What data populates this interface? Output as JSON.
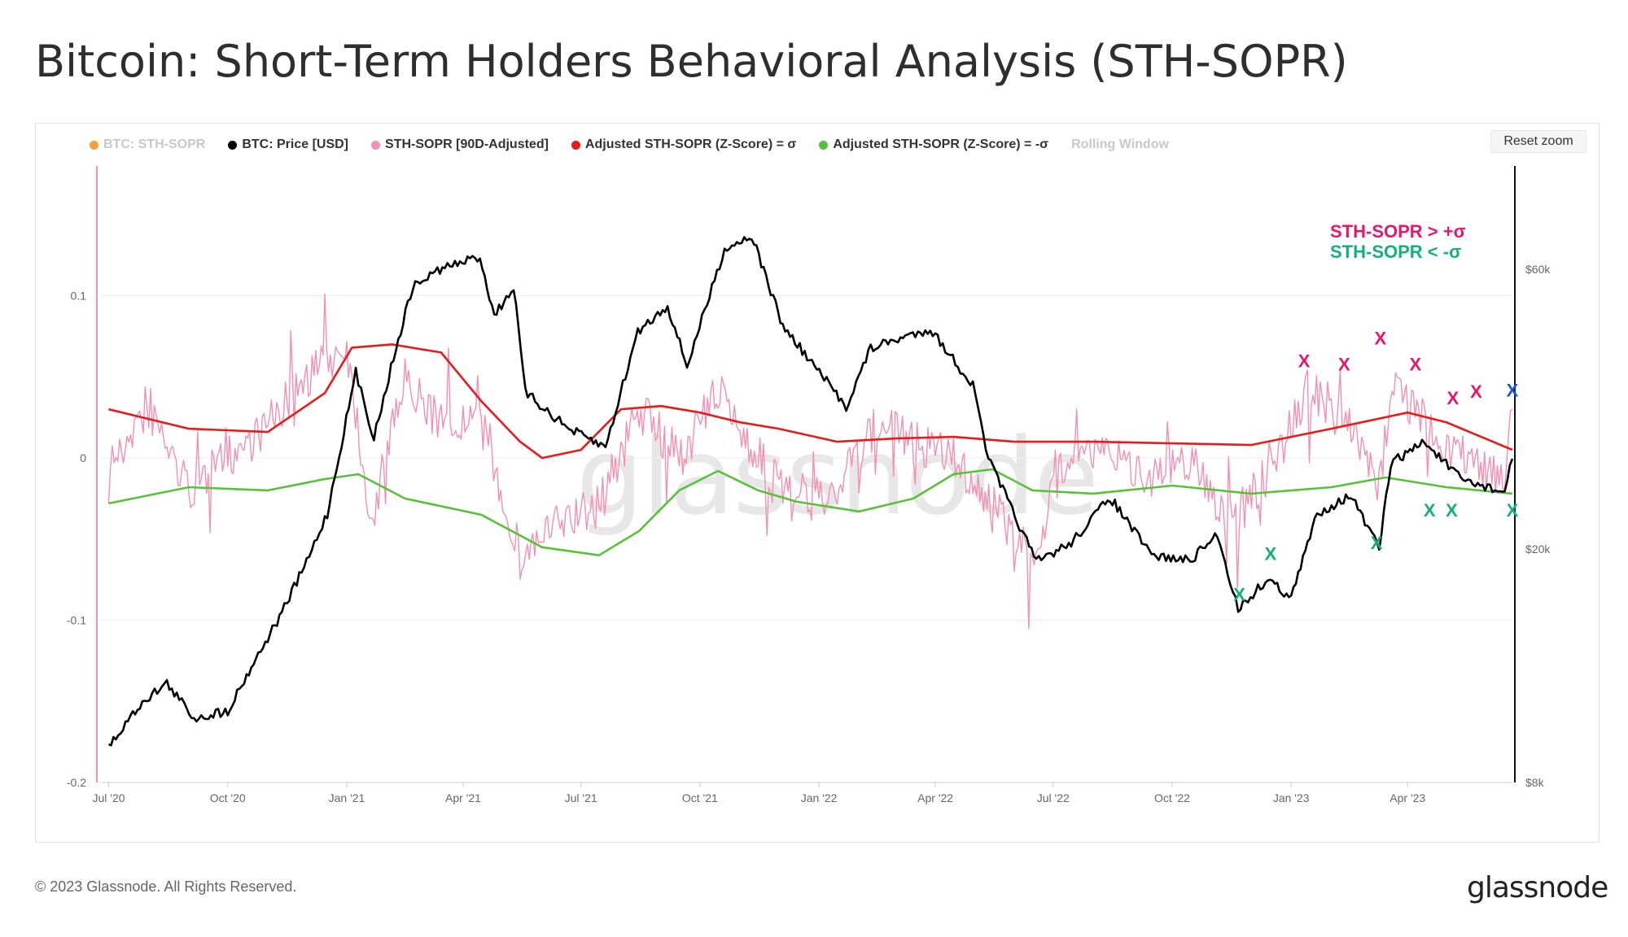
{
  "header": {
    "title": "Bitcoin: Short-Term Holders Behavioral Analysis (STH-SOPR)"
  },
  "legend": {
    "items": [
      {
        "label": "BTC: STH-SOPR",
        "color": "#f7a035",
        "enabled": false
      },
      {
        "label": "BTC: Price [USD]",
        "color": "#000000",
        "enabled": true
      },
      {
        "label": "STH-SOPR [90D-Adjusted]",
        "color": "#f48fb1",
        "enabled": true
      },
      {
        "label": "Adjusted STH-SOPR (Z-Score) = σ",
        "color": "#e81a1a",
        "enabled": true
      },
      {
        "label": "Adjusted STH-SOPR (Z-Score) = -σ",
        "color": "#55c338",
        "enabled": true
      },
      {
        "label": "Rolling Window",
        "color": "",
        "enabled": false
      }
    ]
  },
  "toolbar": {
    "reset_zoom_label": "Reset zoom"
  },
  "watermark": "glassnode",
  "annotations": {
    "upper": "STH-SOPR  > +σ",
    "lower": "STH-SOPR  < -σ"
  },
  "footer": {
    "copyright": "© 2023 Glassnode. All Rights Reserved.",
    "brand": "glassnode"
  },
  "chart_data": {
    "type": "line",
    "x_tick_labels": [
      "Jul '20",
      "Oct '20",
      "Jan '21",
      "Apr '21",
      "Jul '21",
      "Oct '21",
      "Jan '22",
      "Apr '22",
      "Jul '22",
      "Oct '22",
      "Jan '23",
      "Apr '23"
    ],
    "x_range": [
      "2020-06-25",
      "2023-06-21"
    ],
    "y_left": {
      "ticks": [
        0.1,
        0,
        -0.1,
        -0.2
      ],
      "tick_labels": [
        "0.1",
        "0",
        "-0.1",
        "-0.2"
      ],
      "range": [
        -0.2,
        0.18
      ]
    },
    "y_right": {
      "scale": "log",
      "ticks": [
        60000,
        20000,
        8000
      ],
      "tick_labels": [
        "$60k",
        "$20k",
        "$8k"
      ],
      "range": [
        8000,
        90000
      ]
    },
    "series": [
      {
        "name": "BTC: Price [USD]",
        "axis": "right",
        "color": "#000000",
        "points": [
          [
            "2020-07-01",
            9200
          ],
          [
            "2020-07-27",
            11000
          ],
          [
            "2020-08-15",
            11800
          ],
          [
            "2020-09-05",
            10300
          ],
          [
            "2020-10-01",
            10600
          ],
          [
            "2020-10-21",
            12800
          ],
          [
            "2020-11-10",
            15300
          ],
          [
            "2020-12-01",
            19000
          ],
          [
            "2020-12-17",
            23000
          ],
          [
            "2021-01-08",
            40000
          ],
          [
            "2021-01-22",
            31000
          ],
          [
            "2021-02-08",
            44000
          ],
          [
            "2021-02-21",
            56000
          ],
          [
            "2021-03-14",
            60000
          ],
          [
            "2021-04-14",
            63000
          ],
          [
            "2021-04-25",
            50000
          ],
          [
            "2021-05-10",
            56000
          ],
          [
            "2021-05-19",
            37000
          ],
          [
            "2021-06-22",
            32000
          ],
          [
            "2021-07-20",
            29800
          ],
          [
            "2021-08-14",
            47000
          ],
          [
            "2021-09-06",
            52000
          ],
          [
            "2021-09-21",
            41000
          ],
          [
            "2021-10-20",
            65000
          ],
          [
            "2021-11-10",
            68500
          ],
          [
            "2021-12-04",
            48000
          ],
          [
            "2022-01-22",
            35000
          ],
          [
            "2022-02-10",
            44000
          ],
          [
            "2022-03-28",
            47500
          ],
          [
            "2022-04-30",
            38000
          ],
          [
            "2022-05-12",
            28500
          ],
          [
            "2022-06-18",
            19000
          ],
          [
            "2022-07-15",
            20500
          ],
          [
            "2022-08-14",
            24500
          ],
          [
            "2022-09-15",
            19500
          ],
          [
            "2022-10-15",
            19100
          ],
          [
            "2022-11-05",
            21200
          ],
          [
            "2022-11-21",
            15800
          ],
          [
            "2022-12-14",
            17800
          ],
          [
            "2023-01-01",
            16500
          ],
          [
            "2023-01-21",
            23000
          ],
          [
            "2023-02-16",
            24700
          ],
          [
            "2023-03-10",
            20000
          ],
          [
            "2023-03-19",
            28000
          ],
          [
            "2023-04-14",
            30500
          ],
          [
            "2023-05-12",
            26300
          ],
          [
            "2023-06-15",
            25000
          ],
          [
            "2023-06-21",
            28500
          ]
        ]
      },
      {
        "name": "STH-SOPR [90D-Adjusted]",
        "axis": "left",
        "color": "#f48fb1",
        "points": [
          [
            "2020-07-01",
            0.0
          ],
          [
            "2020-08-01",
            0.03
          ],
          [
            "2020-09-01",
            -0.02
          ],
          [
            "2020-10-01",
            0.0
          ],
          [
            "2020-11-01",
            0.02
          ],
          [
            "2020-12-01",
            0.05
          ],
          [
            "2021-01-01",
            0.07
          ],
          [
            "2021-01-20",
            -0.04
          ],
          [
            "2021-02-15",
            0.05
          ],
          [
            "2021-03-15",
            0.02
          ],
          [
            "2021-04-15",
            0.02
          ],
          [
            "2021-05-15",
            -0.06
          ],
          [
            "2021-06-15",
            -0.04
          ],
          [
            "2021-07-15",
            -0.03
          ],
          [
            "2021-08-15",
            0.03
          ],
          [
            "2021-09-15",
            0.0
          ],
          [
            "2021-10-15",
            0.04
          ],
          [
            "2021-11-15",
            0.0
          ],
          [
            "2021-12-15",
            -0.03
          ],
          [
            "2022-01-15",
            -0.02
          ],
          [
            "2022-02-15",
            0.02
          ],
          [
            "2022-03-15",
            0.01
          ],
          [
            "2022-04-15",
            0.0
          ],
          [
            "2022-05-15",
            -0.03
          ],
          [
            "2022-06-15",
            -0.06
          ],
          [
            "2022-07-15",
            0.01
          ],
          [
            "2022-08-15",
            0.0
          ],
          [
            "2022-09-15",
            -0.01
          ],
          [
            "2022-10-15",
            0.0
          ],
          [
            "2022-11-15",
            -0.04
          ],
          [
            "2022-12-15",
            -0.01
          ],
          [
            "2023-01-15",
            0.045
          ],
          [
            "2023-02-15",
            0.02
          ],
          [
            "2023-03-10",
            -0.02
          ],
          [
            "2023-03-20",
            0.05
          ],
          [
            "2023-04-15",
            0.02
          ],
          [
            "2023-05-15",
            0.0
          ],
          [
            "2023-06-15",
            -0.01
          ],
          [
            "2023-06-21",
            0.03
          ]
        ]
      },
      {
        "name": "Adjusted STH-SOPR (Z-Score) = σ",
        "axis": "left",
        "color": "#e81a1a",
        "points": [
          [
            "2020-07-01",
            0.03
          ],
          [
            "2020-09-01",
            0.018
          ],
          [
            "2020-11-01",
            0.016
          ],
          [
            "2020-12-15",
            0.04
          ],
          [
            "2021-01-05",
            0.068
          ],
          [
            "2021-02-05",
            0.07
          ],
          [
            "2021-03-15",
            0.065
          ],
          [
            "2021-04-15",
            0.035
          ],
          [
            "2021-05-15",
            0.01
          ],
          [
            "2021-06-01",
            0.0
          ],
          [
            "2021-07-01",
            0.005
          ],
          [
            "2021-08-01",
            0.03
          ],
          [
            "2021-09-01",
            0.032
          ],
          [
            "2021-10-01",
            0.028
          ],
          [
            "2021-11-01",
            0.022
          ],
          [
            "2021-12-01",
            0.018
          ],
          [
            "2022-01-15",
            0.01
          ],
          [
            "2022-03-01",
            0.012
          ],
          [
            "2022-04-15",
            0.013
          ],
          [
            "2022-06-01",
            0.01
          ],
          [
            "2022-08-01",
            0.01
          ],
          [
            "2022-10-01",
            0.009
          ],
          [
            "2022-12-01",
            0.008
          ],
          [
            "2023-02-01",
            0.018
          ],
          [
            "2023-04-01",
            0.028
          ],
          [
            "2023-05-01",
            0.022
          ],
          [
            "2023-06-21",
            0.005
          ]
        ]
      },
      {
        "name": "Adjusted STH-SOPR (Z-Score) = -σ",
        "axis": "left",
        "color": "#55c338",
        "points": [
          [
            "2020-07-01",
            -0.028
          ],
          [
            "2020-09-01",
            -0.018
          ],
          [
            "2020-11-01",
            -0.02
          ],
          [
            "2020-12-15",
            -0.013
          ],
          [
            "2021-01-10",
            -0.01
          ],
          [
            "2021-02-15",
            -0.025
          ],
          [
            "2021-04-15",
            -0.035
          ],
          [
            "2021-06-01",
            -0.055
          ],
          [
            "2021-07-15",
            -0.06
          ],
          [
            "2021-08-15",
            -0.045
          ],
          [
            "2021-09-15",
            -0.02
          ],
          [
            "2021-10-15",
            -0.008
          ],
          [
            "2021-11-15",
            -0.02
          ],
          [
            "2021-12-15",
            -0.027
          ],
          [
            "2022-02-01",
            -0.033
          ],
          [
            "2022-03-15",
            -0.025
          ],
          [
            "2022-04-15",
            -0.01
          ],
          [
            "2022-05-15",
            -0.007
          ],
          [
            "2022-06-15",
            -0.02
          ],
          [
            "2022-08-01",
            -0.022
          ],
          [
            "2022-10-01",
            -0.017
          ],
          [
            "2022-12-01",
            -0.022
          ],
          [
            "2023-02-01",
            -0.018
          ],
          [
            "2023-03-15",
            -0.012
          ],
          [
            "2023-05-01",
            -0.018
          ],
          [
            "2023-06-21",
            -0.022
          ]
        ]
      }
    ],
    "markers": [
      {
        "label": "X",
        "color": "#e8166b",
        "date": "2023-01-11",
        "value": 0.056
      },
      {
        "label": "X",
        "color": "#e8166b",
        "date": "2023-02-11",
        "value": 0.054
      },
      {
        "label": "X",
        "color": "#e8166b",
        "date": "2023-03-11",
        "value": 0.07
      },
      {
        "label": "X",
        "color": "#e8166b",
        "date": "2023-04-07",
        "value": 0.054
      },
      {
        "label": "X",
        "color": "#e8166b",
        "date": "2023-05-06",
        "value": 0.033
      },
      {
        "label": "X",
        "color": "#e8166b",
        "date": "2023-05-24",
        "value": 0.037
      },
      {
        "label": "X",
        "color": "#1a4ee8",
        "date": "2023-06-21",
        "value": 0.038
      },
      {
        "label": "X",
        "color": "#12b07c",
        "date": "2022-11-22",
        "value": -0.088
      },
      {
        "label": "X",
        "color": "#12b07c",
        "date": "2022-12-16",
        "value": -0.063
      },
      {
        "label": "X",
        "color": "#12b07c",
        "date": "2023-03-08",
        "value": -0.056
      },
      {
        "label": "X",
        "color": "#12b07c",
        "date": "2023-04-18",
        "value": -0.036
      },
      {
        "label": "X",
        "color": "#12b07c",
        "date": "2023-05-05",
        "value": -0.036
      },
      {
        "label": "X",
        "color": "#12b07c",
        "date": "2023-06-21",
        "value": -0.036
      }
    ]
  }
}
